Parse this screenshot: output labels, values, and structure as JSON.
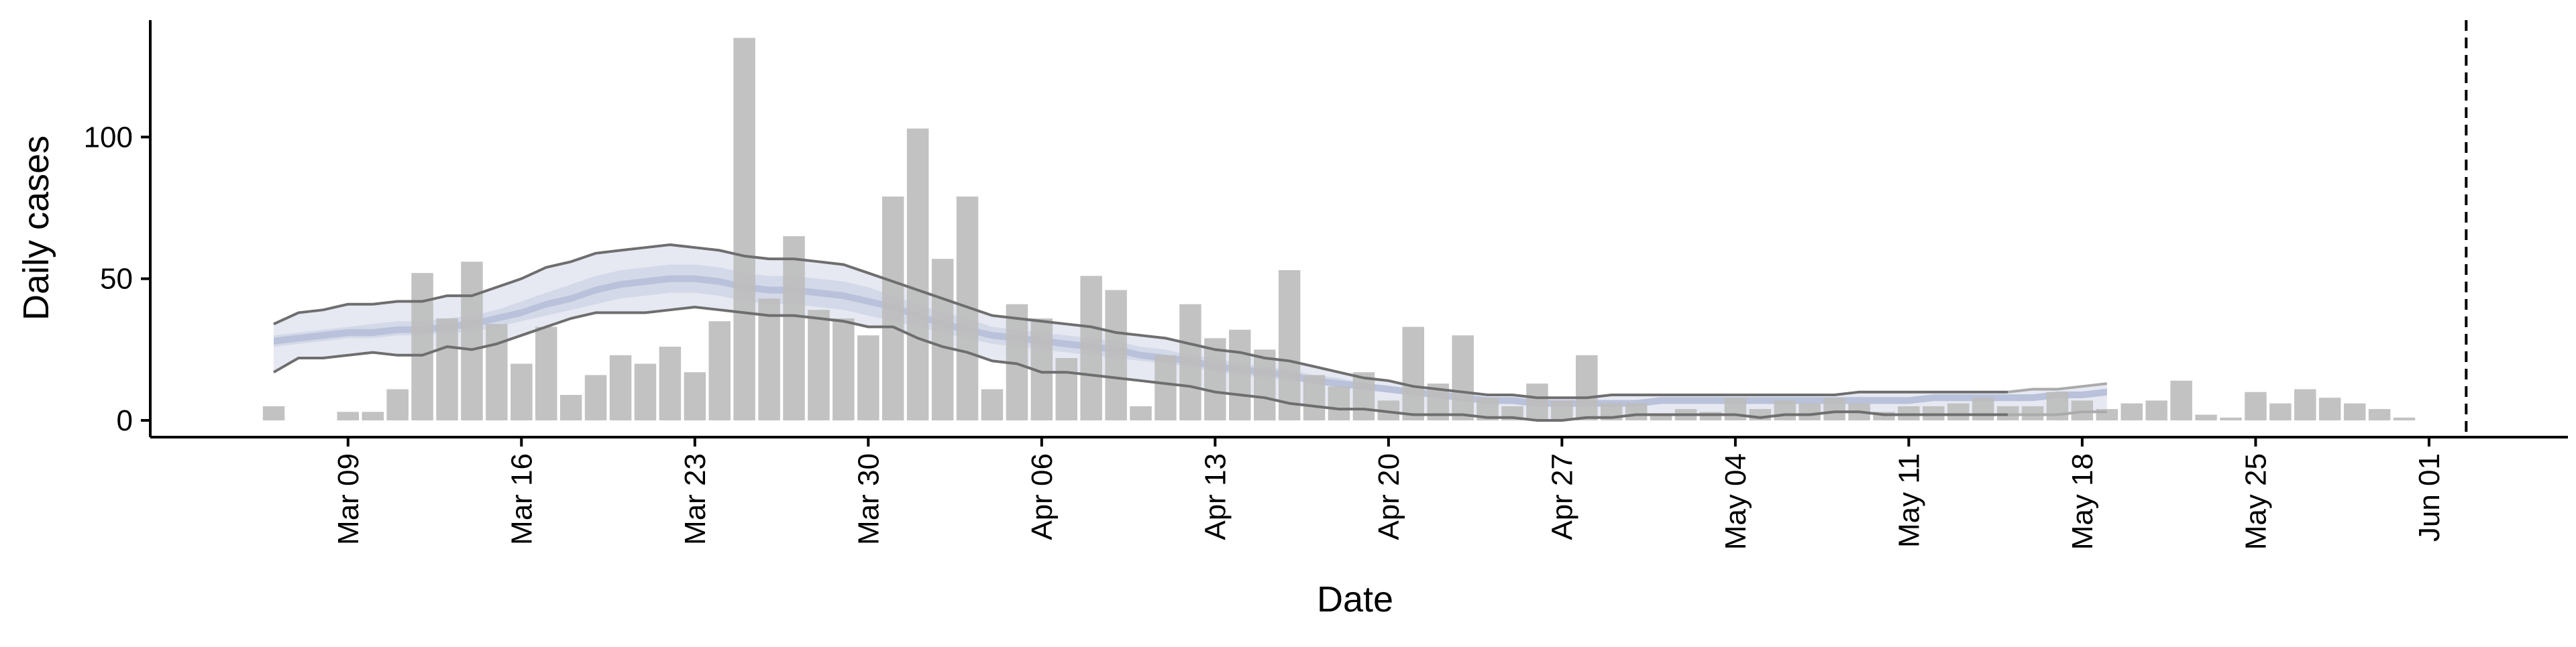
{
  "chart_data": {
    "type": "bar",
    "title": "",
    "xlabel": "Date",
    "ylabel": "Daily cases",
    "x_start_date": "2020-03-06",
    "ylim": [
      -5,
      140
    ],
    "y_ticks": [
      0,
      50,
      100
    ],
    "x_tick_labels": [
      "Mar 09",
      "Mar 16",
      "Mar 23",
      "Mar 30",
      "Apr 06",
      "Apr 13",
      "Apr 20",
      "Apr 27",
      "May 04",
      "May 11",
      "May 18",
      "May 25",
      "Jun 01"
    ],
    "x_tick_day_index": [
      3,
      10,
      17,
      24,
      31,
      38,
      45,
      52,
      59,
      66,
      73,
      80,
      87
    ],
    "vline_day_index": 88.5,
    "grid": false,
    "legend": "none",
    "colors": {
      "bars": "#bdbdbd",
      "outer_band": "#e6e9f2",
      "mid_band": "#d3d9e8",
      "inner_band": "#b9c2da",
      "outer_lines": "#6e6e6e",
      "outer_lines_faded": "#aaaaaa",
      "axis": "#000000"
    },
    "daily_cases": [
      5,
      0,
      0,
      3,
      3,
      11,
      52,
      36,
      56,
      34,
      20,
      33,
      9,
      16,
      23,
      20,
      26,
      17,
      35,
      135,
      43,
      65,
      39,
      36,
      30,
      79,
      103,
      57,
      79,
      11,
      41,
      36,
      22,
      51,
      46,
      5,
      23,
      41,
      29,
      32,
      25,
      53,
      16,
      12,
      17,
      7,
      33,
      13,
      30,
      8,
      5,
      13,
      7,
      23,
      6,
      6,
      2,
      4,
      3,
      8,
      4,
      7,
      6,
      8,
      6,
      3,
      5,
      5,
      6,
      8,
      5,
      5,
      10,
      7,
      4,
      6,
      7,
      14,
      2,
      1,
      10,
      6,
      11,
      8,
      6,
      4,
      1
    ],
    "model_band_days": [
      0,
      74
    ],
    "model_upper_outer": [
      34,
      38,
      39,
      41,
      41,
      42,
      42,
      44,
      44,
      47,
      50,
      54,
      56,
      59,
      60,
      61,
      62,
      61,
      60,
      58,
      57,
      57,
      56,
      55,
      52,
      49,
      46,
      43,
      40,
      37,
      36,
      35,
      34,
      33,
      31,
      30,
      29,
      27,
      25,
      24,
      22,
      21,
      19,
      17,
      15,
      14,
      12,
      11,
      10,
      9,
      9,
      8,
      8,
      8,
      9,
      9,
      9,
      9,
      9,
      9,
      9,
      9,
      9,
      9,
      10,
      10,
      10,
      10,
      10,
      10,
      10,
      11,
      11,
      12,
      13
    ],
    "model_upper_mid": [
      30,
      31,
      32,
      33,
      34,
      35,
      35,
      36,
      37,
      39,
      42,
      45,
      48,
      51,
      53,
      54,
      55,
      55,
      54,
      52,
      51,
      51,
      50,
      49,
      47,
      44,
      41,
      38,
      36,
      33,
      32,
      31,
      30,
      29,
      28,
      26,
      25,
      23,
      22,
      20,
      19,
      18,
      16,
      15,
      13,
      12,
      11,
      10,
      9,
      8,
      8,
      7,
      7,
      7,
      7,
      7,
      8,
      8,
      8,
      8,
      8,
      8,
      8,
      8,
      8,
      8,
      8,
      9,
      9,
      9,
      9,
      9,
      10,
      10,
      11
    ],
    "model_center": [
      28,
      29,
      30,
      31,
      31,
      32,
      32,
      33,
      34,
      36,
      38,
      41,
      43,
      46,
      48,
      49,
      50,
      50,
      49,
      47,
      46,
      46,
      45,
      44,
      42,
      40,
      37,
      34,
      32,
      30,
      29,
      28,
      27,
      26,
      25,
      23,
      22,
      21,
      19,
      18,
      17,
      16,
      14,
      13,
      12,
      11,
      10,
      9,
      8,
      7,
      7,
      6,
      6,
      6,
      6,
      6,
      7,
      7,
      7,
      7,
      7,
      7,
      7,
      7,
      7,
      7,
      7,
      8,
      8,
      8,
      8,
      8,
      9,
      9,
      10
    ],
    "model_lower_mid": [
      26,
      27,
      28,
      29,
      29,
      30,
      30,
      31,
      31,
      33,
      35,
      37,
      39,
      41,
      43,
      44,
      45,
      45,
      44,
      42,
      41,
      41,
      40,
      39,
      37,
      35,
      33,
      31,
      29,
      27,
      26,
      25,
      24,
      23,
      22,
      21,
      20,
      19,
      17,
      16,
      15,
      14,
      13,
      12,
      11,
      10,
      9,
      8,
      7,
      6,
      6,
      5,
      5,
      5,
      5,
      5,
      6,
      6,
      6,
      6,
      6,
      6,
      6,
      6,
      6,
      6,
      6,
      7,
      7,
      7,
      7,
      7,
      8,
      8,
      9
    ],
    "model_lower_outer": [
      17,
      22,
      22,
      23,
      24,
      23,
      23,
      26,
      25,
      27,
      30,
      33,
      36,
      38,
      38,
      38,
      39,
      40,
      39,
      38,
      37,
      37,
      36,
      35,
      33,
      33,
      29,
      26,
      24,
      21,
      20,
      17,
      17,
      16,
      15,
      14,
      13,
      12,
      10,
      9,
      8,
      6,
      5,
      4,
      4,
      3,
      2,
      2,
      2,
      1,
      1,
      0,
      0,
      1,
      1,
      2,
      2,
      2,
      2,
      2,
      1,
      2,
      2,
      3,
      3,
      2,
      2,
      2,
      2,
      2,
      2,
      2,
      2,
      3,
      3
    ]
  }
}
